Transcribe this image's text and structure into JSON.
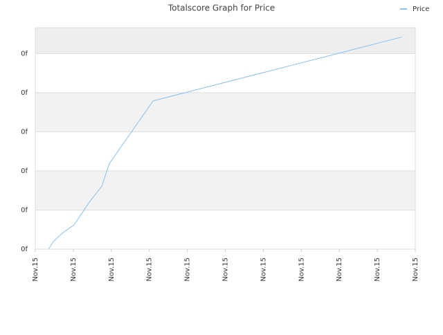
{
  "chart_data": {
    "type": "line",
    "title": "Totalscore Graph for Price",
    "x": [
      0.35,
      0.47,
      0.71,
      1.02,
      1.42,
      1.75,
      1.95,
      3.1,
      9.64
    ],
    "series": [
      {
        "name": "Price",
        "color": "#88c0ee",
        "values": [
          0,
          0.19,
          0.41,
          0.62,
          1.2,
          1.61,
          2.19,
          3.79,
          5.42
        ]
      }
    ],
    "xlim": [
      0,
      10
    ],
    "xticks": [
      {
        "value": 0,
        "label": "Nov.15"
      },
      {
        "value": 1,
        "label": "Nov.15"
      },
      {
        "value": 2,
        "label": "Nov.15"
      },
      {
        "value": 3,
        "label": "Nov.15"
      },
      {
        "value": 4,
        "label": "Nov.15"
      },
      {
        "value": 5,
        "label": "Nov.15"
      },
      {
        "value": 6,
        "label": "Nov.15"
      },
      {
        "value": 7,
        "label": "Nov.15"
      },
      {
        "value": 8,
        "label": "Nov.15"
      },
      {
        "value": 9,
        "label": "Nov.15"
      },
      {
        "value": 10,
        "label": "Nov.15"
      }
    ],
    "ylim": [
      0,
      5.66
    ],
    "yticks": [
      {
        "value": 0,
        "label": "0f"
      },
      {
        "value": 1,
        "label": "0f"
      },
      {
        "value": 2,
        "label": "0f"
      },
      {
        "value": 3,
        "label": "0f"
      },
      {
        "value": 4,
        "label": "0f"
      },
      {
        "value": 5,
        "label": "0f"
      }
    ],
    "grid": true,
    "legend": "top-right"
  }
}
